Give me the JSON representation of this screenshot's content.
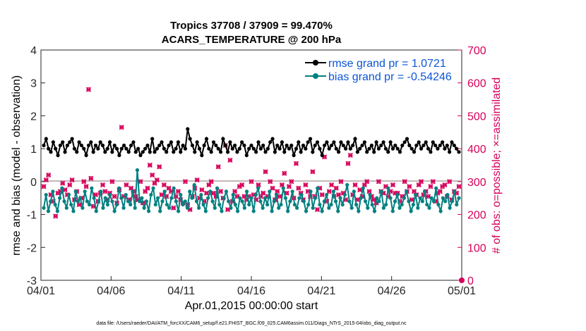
{
  "chart_data": {
    "type": "line",
    "title": "Tropics 37708 / 37909 = 99.470%",
    "subtitle": "ACARS_TEMPERATURE @ 200 hPa",
    "xlabel": "Apr.01,2015 00:00:00 start",
    "ylabel_left": "rmse and bias (model - observation)",
    "ylabel_right": "# of obs: o=possible; ×=assimilated",
    "footer": "data file: /Users/raeder/DAI/ATM_forcXX/CAM6_setup/f.e21.FHIST_BGC.f09_025.CAM6assim.011/Diags_NTrS_2015-04/obs_diag_output.nc",
    "x_ticks": [
      "04/01",
      "04/06",
      "04/11",
      "04/16",
      "04/21",
      "04/26",
      "05/01"
    ],
    "x_range_days": [
      0,
      30
    ],
    "ylim_left": [
      -3,
      4
    ],
    "y_ticks_left": [
      "-3",
      "-2",
      "-1",
      "0",
      "1",
      "2",
      "3",
      "4"
    ],
    "ylim_right": [
      0,
      700
    ],
    "y_ticks_right": [
      "0",
      "100",
      "200",
      "300",
      "400",
      "500",
      "600",
      "700"
    ],
    "legend": {
      "position": "top-right",
      "entries": [
        {
          "label": "rmse grand pr = 1.0721",
          "color": "#000000"
        },
        {
          "label": "bias grand pr = -0.54246",
          "color": "#008080"
        }
      ]
    },
    "series": [
      {
        "name": "rmse",
        "color": "#000000",
        "values": [
          1.1,
          1.3,
          1.0,
          0.9,
          1.2,
          1.0,
          0.8,
          1.1,
          1.2,
          0.9,
          1.1,
          1.2,
          1.3,
          1.0,
          0.9,
          1.2,
          1.1,
          1.0,
          0.8,
          1.1,
          1.2,
          0.9,
          1.1,
          1.0,
          1.2,
          1.1,
          0.9,
          1.0,
          1.2,
          0.9,
          1.1,
          1.0,
          0.8,
          1.0,
          1.1,
          1.0,
          0.9,
          1.1,
          1.2,
          0.9,
          1.0,
          0.8,
          0.9,
          1.0,
          1.1,
          0.9,
          1.3,
          0.9,
          1.0,
          1.1,
          1.2,
          1.0,
          0.9,
          1.1,
          1.2,
          0.9,
          1.0,
          1.2,
          0.9,
          1.1,
          1.0,
          1.6,
          1.3,
          1.1,
          0.9,
          1.2,
          1.0,
          0.8,
          1.1,
          1.3,
          1.0,
          0.9,
          1.2,
          1.1,
          1.0,
          0.9,
          1.3,
          1.1,
          0.9,
          1.2,
          1.0,
          1.1,
          0.9,
          1.0,
          1.2,
          1.1,
          0.8,
          1.0,
          1.1,
          1.0,
          0.9,
          1.2,
          1.0,
          1.1,
          0.9,
          1.0,
          1.2,
          1.3,
          0.9,
          1.1,
          1.0,
          1.2,
          0.9,
          1.1,
          1.0,
          1.1,
          0.8,
          1.0,
          1.2,
          0.9,
          1.1,
          1.0,
          1.2,
          1.3,
          0.9,
          1.1,
          1.2,
          1.0,
          0.8,
          1.1,
          1.2,
          1.0,
          1.1,
          1.2,
          1.0,
          0.9,
          1.2,
          1.1,
          1.0,
          1.2,
          1.0,
          1.1,
          1.3,
          0.9,
          1.0,
          1.1,
          1.2,
          0.9,
          1.0,
          1.1,
          0.9,
          1.2,
          1.0,
          1.1,
          1.2,
          1.0,
          0.9,
          1.2,
          1.0,
          1.1,
          1.0,
          0.9,
          1.1,
          1.2,
          1.3,
          1.1,
          1.0,
          0.9,
          1.1,
          1.2,
          1.0,
          1.1,
          1.2,
          1.0,
          0.9,
          1.2,
          1.1,
          1.0,
          1.1,
          1.2,
          1.0,
          1.1,
          0.9,
          1.2,
          1.1,
          1.0,
          0.9
        ]
      },
      {
        "name": "bias",
        "color": "#008080",
        "values": [
          -0.8,
          -0.4,
          -0.9,
          -0.6,
          -0.3,
          -0.7,
          -0.9,
          -0.5,
          -0.2,
          -0.6,
          -0.8,
          -0.4,
          -0.7,
          -0.9,
          -0.3,
          -0.6,
          -0.5,
          -0.8,
          -0.3,
          -0.6,
          -0.7,
          -0.2,
          -0.5,
          -0.9,
          -0.6,
          -0.3,
          -0.8,
          -0.5,
          -0.7,
          -0.4,
          -0.6,
          -0.9,
          -0.7,
          -0.2,
          -0.5,
          -0.8,
          -0.4,
          -0.6,
          -0.7,
          -0.3,
          -0.8,
          0.35,
          -0.6,
          -0.5,
          -0.8,
          -0.6,
          -0.9,
          -0.4,
          -0.2,
          -0.7,
          -0.5,
          -0.9,
          -0.6,
          -0.3,
          -0.7,
          -0.8,
          -0.5,
          -0.2,
          -0.6,
          -0.9,
          -0.4,
          -0.7,
          -0.6,
          -0.8,
          -0.3,
          -0.5,
          -0.1,
          -0.6,
          -0.8,
          -0.4,
          -0.7,
          -0.9,
          -0.5,
          -0.3,
          -0.6,
          -0.8,
          -0.2,
          -0.7,
          -0.9,
          -0.5,
          -0.3,
          -0.6,
          -0.8,
          -0.4,
          -0.7,
          -0.9,
          -0.5,
          -0.6,
          -0.8,
          -0.3,
          -0.7,
          -0.5,
          -0.9,
          -0.4,
          -0.2,
          -0.6,
          -0.8,
          -0.5,
          -0.7,
          -0.3,
          -0.9,
          -0.6,
          -0.4,
          -0.8,
          -0.7,
          -0.2,
          -0.5,
          -0.9,
          -0.6,
          -0.3,
          -0.7,
          -0.8,
          -0.5,
          -0.4,
          -0.6,
          -0.9,
          -0.7,
          -0.3,
          -0.8,
          -0.5,
          -0.2,
          -0.7,
          -0.9,
          -0.6,
          -0.4,
          -0.8,
          -0.7,
          -0.3,
          -0.6,
          -0.9,
          -0.5,
          -0.7,
          -0.4,
          -0.1,
          -0.6,
          -0.8,
          -0.3,
          -0.7,
          -0.9,
          -0.5,
          -0.2,
          -0.6,
          -0.8,
          -0.4,
          -0.7,
          -0.9,
          -0.5,
          -0.6,
          -0.3,
          -0.8,
          -0.7,
          -0.2,
          -0.5,
          -0.9,
          -0.6,
          -0.4,
          -0.8,
          -0.7,
          -0.5,
          -0.3,
          -0.6,
          -0.9,
          -0.7,
          -0.4,
          -0.8,
          -0.5,
          -0.6,
          -0.3,
          -0.7,
          -0.8,
          -0.5,
          -0.6,
          -0.2,
          -0.7,
          -0.9,
          -0.5,
          -0.6,
          -0.4,
          -0.8,
          -0.6,
          -0.3,
          -0.7,
          -0.5
        ]
      }
    ],
    "obs_possible": [
      285,
      305,
      320,
      260,
      240,
      195,
      265,
      270,
      295,
      275,
      260,
      290,
      305,
      245,
      270,
      230,
      250,
      300,
      285,
      580,
      310,
      225,
      260,
      240,
      265,
      290,
      270,
      245,
      265,
      300,
      255,
      235,
      275,
      465,
      255,
      290,
      245,
      280,
      270,
      255,
      245,
      300,
      235,
      270,
      280,
      350,
      320,
      295,
      305,
      345,
      260,
      290,
      255,
      280,
      270,
      220,
      255,
      270,
      245,
      235,
      300,
      230,
      215,
      255,
      280,
      305,
      250,
      275,
      240,
      265,
      290,
      300,
      265,
      255,
      345,
      270,
      250,
      410,
      215,
      365,
      240,
      270,
      255,
      285,
      290,
      255,
      245,
      255,
      300,
      260,
      245,
      290,
      255,
      265,
      330,
      255,
      300,
      280,
      245,
      270,
      255,
      290,
      325,
      265,
      285,
      300,
      250,
      355,
      280,
      265,
      245,
      290,
      270,
      255,
      330,
      255,
      215,
      280,
      260,
      375,
      240,
      270,
      290,
      255,
      280,
      260,
      300,
      265,
      245,
      355,
      380,
      260,
      290,
      245,
      275,
      255,
      290,
      300,
      270,
      255,
      245,
      235,
      300,
      270,
      265,
      285,
      255,
      270,
      290,
      265,
      265,
      240,
      255,
      300,
      270,
      285,
      245,
      270,
      260,
      290,
      300,
      260,
      270,
      255,
      285,
      300,
      240,
      265,
      270,
      285,
      290,
      255,
      300,
      245,
      270,
      265,
      285
    ],
    "obs_assimilated": [
      285,
      305,
      320,
      260,
      240,
      195,
      265,
      270,
      295,
      275,
      260,
      290,
      305,
      245,
      270,
      230,
      250,
      300,
      285,
      580,
      310,
      225,
      260,
      240,
      265,
      290,
      270,
      245,
      265,
      300,
      255,
      235,
      275,
      465,
      255,
      290,
      245,
      280,
      270,
      255,
      245,
      300,
      235,
      270,
      280,
      350,
      320,
      295,
      305,
      345,
      260,
      290,
      255,
      280,
      270,
      220,
      255,
      270,
      245,
      235,
      300,
      230,
      215,
      255,
      280,
      305,
      250,
      275,
      240,
      265,
      290,
      300,
      265,
      255,
      345,
      270,
      250,
      410,
      215,
      365,
      240,
      270,
      255,
      285,
      290,
      255,
      245,
      255,
      300,
      260,
      245,
      290,
      255,
      265,
      330,
      255,
      300,
      280,
      245,
      270,
      255,
      290,
      325,
      265,
      285,
      300,
      250,
      355,
      280,
      265,
      245,
      290,
      270,
      255,
      330,
      255,
      215,
      280,
      260,
      375,
      240,
      270,
      290,
      255,
      280,
      260,
      300,
      265,
      245,
      355,
      380,
      260,
      290,
      245,
      275,
      255,
      290,
      300,
      270,
      255,
      245,
      235,
      300,
      270,
      265,
      285,
      255,
      270,
      290,
      265,
      265,
      240,
      255,
      300,
      270,
      285,
      245,
      270,
      260,
      290,
      300,
      260,
      270,
      255,
      285,
      300,
      240,
      265,
      270,
      285,
      290,
      255,
      300,
      245,
      270,
      265,
      285
    ]
  }
}
